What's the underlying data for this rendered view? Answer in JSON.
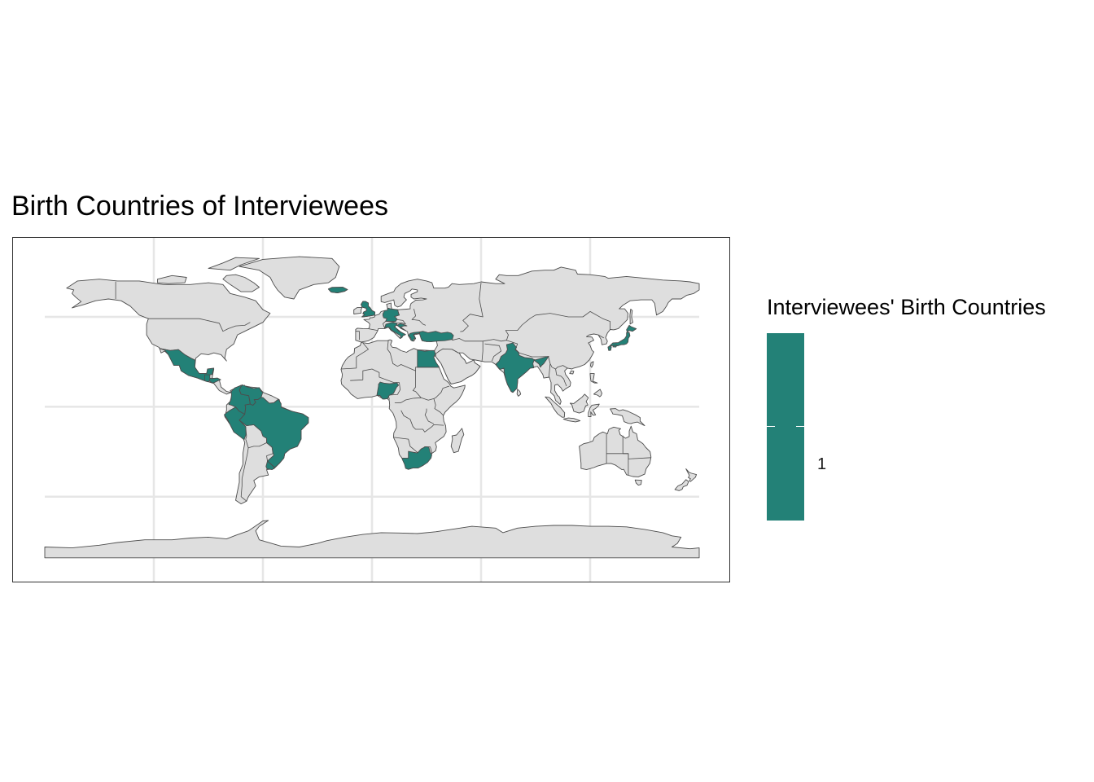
{
  "title": "Birth Countries of Interviewees",
  "legend": {
    "title": "Interviewees' Birth Countries",
    "labels": [
      "1"
    ]
  },
  "colors": {
    "highlight": "#238177",
    "land": "#dedede",
    "border": "#4d4d4d",
    "grid": "#e6e6e6"
  },
  "map": {
    "projection": "equirectangular",
    "highlighted_countries": [
      "Mexico",
      "Guatemala",
      "Honduras",
      "Colombia",
      "Venezuela",
      "Peru",
      "Brazil",
      "Uruguay",
      "Iceland",
      "United Kingdom",
      "Germany",
      "Italy",
      "Croatia",
      "Greece",
      "Turkey",
      "Egypt",
      "Nigeria",
      "South Africa",
      "India",
      "Japan"
    ]
  }
}
